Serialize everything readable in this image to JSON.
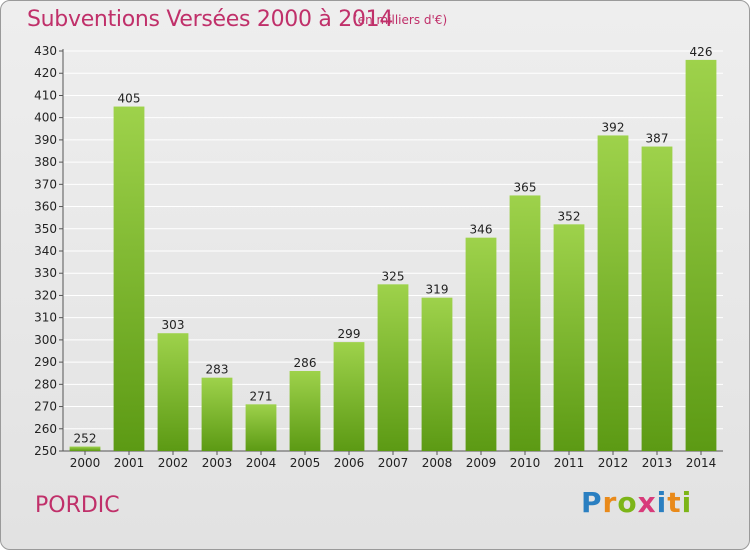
{
  "title": "Subventions Versées 2000 à 2014",
  "subtitle": "(en milliers d'€)",
  "place": "PORDIC",
  "logo": {
    "letters": [
      "P",
      "r",
      "o",
      "x",
      "i",
      "t",
      "i"
    ],
    "colors": [
      "#2a7fc1",
      "#e98a1a",
      "#7cb518",
      "#d83a7a",
      "#2a7fc1",
      "#e98a1a",
      "#7cb518"
    ]
  },
  "colors": {
    "title": "#c0306a",
    "bar_top": "#9ed24b",
    "bar_bottom": "#5c9a14",
    "grid": "#ffffff"
  },
  "chart_data": {
    "type": "bar",
    "title": "Subventions Versées 2000 à 2014",
    "subtitle": "(en milliers d'€)",
    "categories": [
      "2000",
      "2001",
      "2002",
      "2003",
      "2004",
      "2005",
      "2006",
      "2007",
      "2008",
      "2009",
      "2010",
      "2011",
      "2012",
      "2013",
      "2014"
    ],
    "values": [
      252,
      405,
      303,
      283,
      271,
      286,
      299,
      325,
      319,
      346,
      365,
      352,
      392,
      387,
      426
    ],
    "ylim": [
      250,
      430
    ],
    "yticks": [
      250,
      260,
      270,
      280,
      290,
      300,
      310,
      320,
      330,
      340,
      350,
      360,
      370,
      380,
      390,
      400,
      410,
      420,
      430
    ],
    "grid": true,
    "xlabel": "",
    "ylabel": ""
  }
}
